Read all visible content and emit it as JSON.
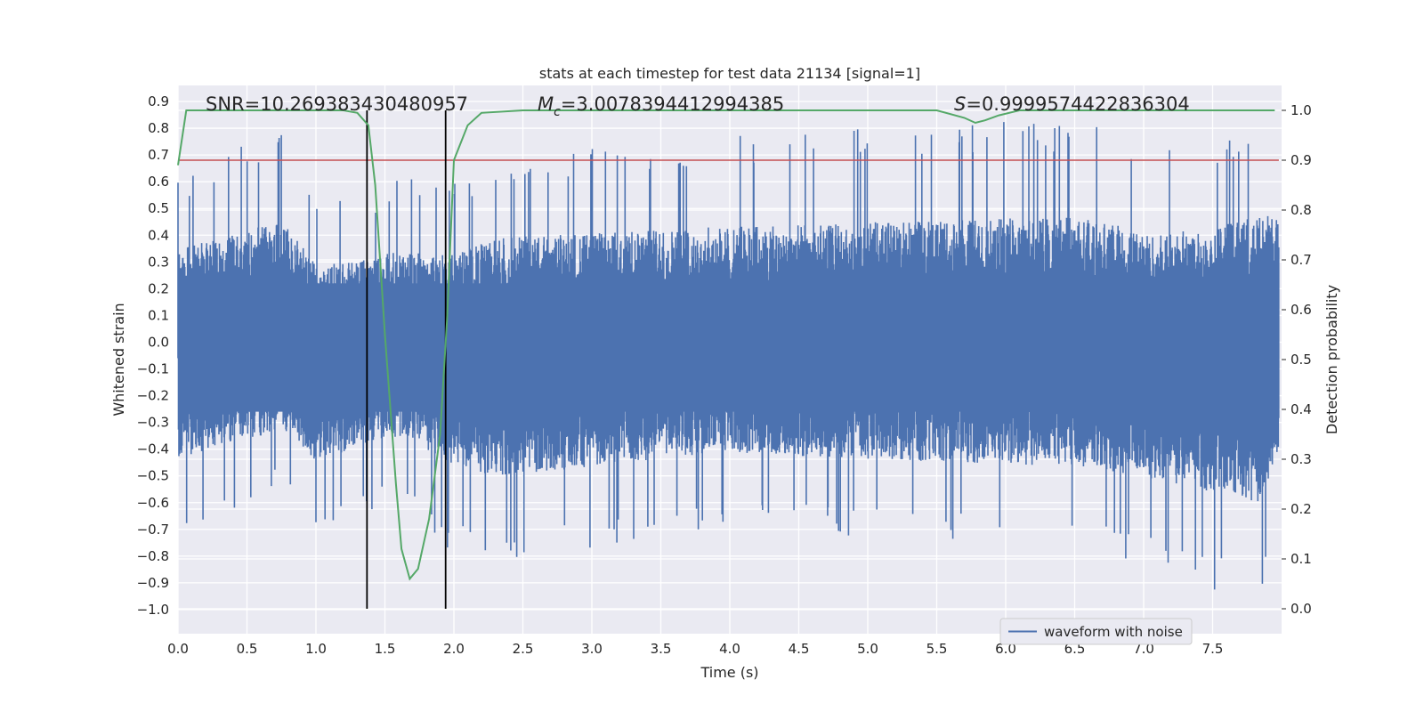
{
  "chart_data": {
    "type": "line",
    "title": "stats at each timestep for test data 21134 [signal=1]",
    "xlabel": "Time (s)",
    "ylabel": "Whitened strain",
    "y2label": "Detection probability",
    "xlim": [
      0.0,
      8.0
    ],
    "ylim": [
      -1.09,
      0.96
    ],
    "y2lim": [
      -0.05,
      1.05
    ],
    "x_ticks": [
      "0.0",
      "0.5",
      "1.0",
      "1.5",
      "2.0",
      "2.5",
      "3.0",
      "3.5",
      "4.0",
      "4.5",
      "5.0",
      "5.5",
      "6.0",
      "6.5",
      "7.0",
      "7.5"
    ],
    "y_ticks": [
      "0.9",
      "0.8",
      "0.7",
      "0.6",
      "0.5",
      "0.4",
      "0.3",
      "0.2",
      "0.1",
      "0.0",
      "-0.1",
      "-0.2",
      "-0.3",
      "-0.4",
      "-0.5",
      "-0.6",
      "-0.7",
      "-0.8",
      "-0.9",
      "-1.0"
    ],
    "y2_ticks": [
      "1.0",
      "0.9",
      "0.8",
      "0.7",
      "0.6",
      "0.5",
      "0.4",
      "0.3",
      "0.2",
      "0.1",
      "0.0"
    ],
    "annotations": {
      "snr_label": "SNR=10.269383430480957",
      "mc_symbol": "M",
      "mc_sub": "c",
      "mc_value": "=3.0078394412994385",
      "s_symbol": "S",
      "s_value": "=0.9999574422836304"
    },
    "legend": {
      "label": "waveform with noise",
      "location": "lower-right"
    },
    "colors": {
      "waveform": "#4c72b0",
      "probability": "#55a868",
      "threshold": "#c44e52",
      "markers": "#000000",
      "background": "#eaeaf2",
      "grid": "#ffffff"
    },
    "series": [
      {
        "name": "waveform with noise",
        "axis": "left",
        "description": "whitened noisy strain, approx. amplitude envelope",
        "envelope_points": [
          {
            "x": 0.0,
            "hi": 0.62,
            "lo": -0.72
          },
          {
            "x": 0.75,
            "hi": 0.81,
            "lo": -0.55
          },
          {
            "x": 1.0,
            "hi": 0.52,
            "lo": -0.74
          },
          {
            "x": 1.35,
            "hi": 0.55,
            "lo": -0.65
          },
          {
            "x": 1.65,
            "hi": 0.62,
            "lo": -0.58
          },
          {
            "x": 1.95,
            "hi": 0.58,
            "lo": -0.77
          },
          {
            "x": 2.35,
            "hi": 0.7,
            "lo": -0.84
          },
          {
            "x": 3.9,
            "hi": 0.77,
            "lo": -0.69
          },
          {
            "x": 6.55,
            "hi": 0.84,
            "lo": -0.78
          },
          {
            "x": 7.1,
            "hi": 0.71,
            "lo": -0.86
          },
          {
            "x": 7.85,
            "hi": 0.84,
            "lo": -1.0
          },
          {
            "x": 7.98,
            "hi": 0.88,
            "lo": -0.67
          }
        ]
      },
      {
        "name": "detection probability",
        "axis": "right",
        "x": [
          0.0,
          0.06,
          0.3,
          0.8,
          1.2,
          1.3,
          1.38,
          1.43,
          1.5,
          1.58,
          1.62,
          1.68,
          1.74,
          1.82,
          1.9,
          1.95,
          2.0,
          2.1,
          2.2,
          2.5,
          3.0,
          4.0,
          5.0,
          5.5,
          5.7,
          5.78,
          5.85,
          5.95,
          6.1,
          7.0,
          7.95
        ],
        "values": [
          0.89,
          1.0,
          1.0,
          1.0,
          1.0,
          0.995,
          0.97,
          0.85,
          0.55,
          0.25,
          0.12,
          0.06,
          0.08,
          0.18,
          0.35,
          0.58,
          0.9,
          0.97,
          0.995,
          1.0,
          1.0,
          1.0,
          1.0,
          1.0,
          0.985,
          0.975,
          0.98,
          0.99,
          1.0,
          1.0,
          1.0
        ]
      },
      {
        "name": "threshold",
        "axis": "right",
        "values": [
          0.9
        ]
      }
    ],
    "vertical_markers_s": [
      1.37,
      1.94
    ]
  }
}
